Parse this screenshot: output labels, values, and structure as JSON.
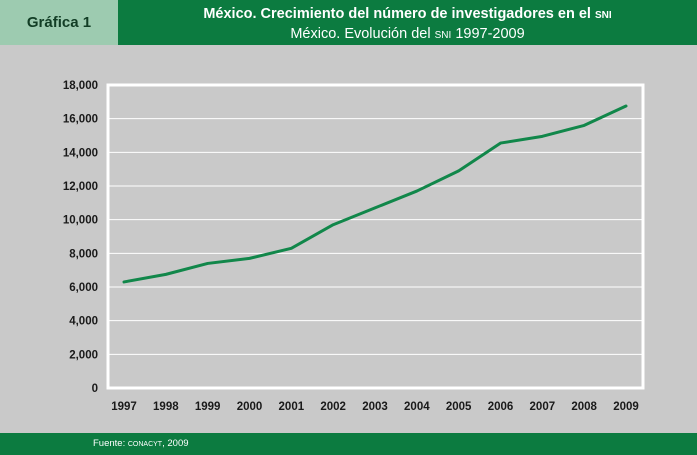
{
  "header": {
    "label": "Gráfica 1",
    "title_main": "México. Crecimiento del número de investigadores en el",
    "title_main_sc": "SNI",
    "subtitle_pre": "México. Evolución del",
    "subtitle_sc": "SNI",
    "subtitle_post": "1997-2009"
  },
  "footer": {
    "source_prefix": "Fuente:",
    "source_org": "CONACYT",
    "source_year": ", 2009"
  },
  "colors": {
    "line": "#11874a",
    "header_green": "#0c7b40",
    "label_bg": "#9dcbb0",
    "panel_bg": "#c9c9c9",
    "plot_bg": "#c9c9c9",
    "grid": "#ffffff"
  },
  "chart_data": {
    "type": "line",
    "title": "México. Crecimiento del número de investigadores en el SNI",
    "subtitle": "México. Evolución del SNI 1997-2009",
    "xlabel": "",
    "ylabel": "",
    "x": [
      "1997",
      "1998",
      "1999",
      "2000",
      "2001",
      "2002",
      "2003",
      "2004",
      "2005",
      "2006",
      "2007",
      "2008",
      "2009"
    ],
    "series": [
      {
        "values": [
          6300,
          6750,
          7400,
          7700,
          8300,
          9700,
          10700,
          11700,
          12900,
          14550,
          14950,
          15600,
          16750
        ]
      }
    ],
    "ylim": [
      0,
      18000
    ],
    "yticks": [
      0,
      2000,
      4000,
      6000,
      8000,
      10000,
      12000,
      14000,
      16000,
      18000
    ],
    "ytick_labels": [
      "0",
      "2,000",
      "4,000",
      "6,000",
      "8,000",
      "10,000",
      "12,000",
      "14,000",
      "16,000",
      "18,000"
    ],
    "grid": true,
    "legend": "none"
  }
}
